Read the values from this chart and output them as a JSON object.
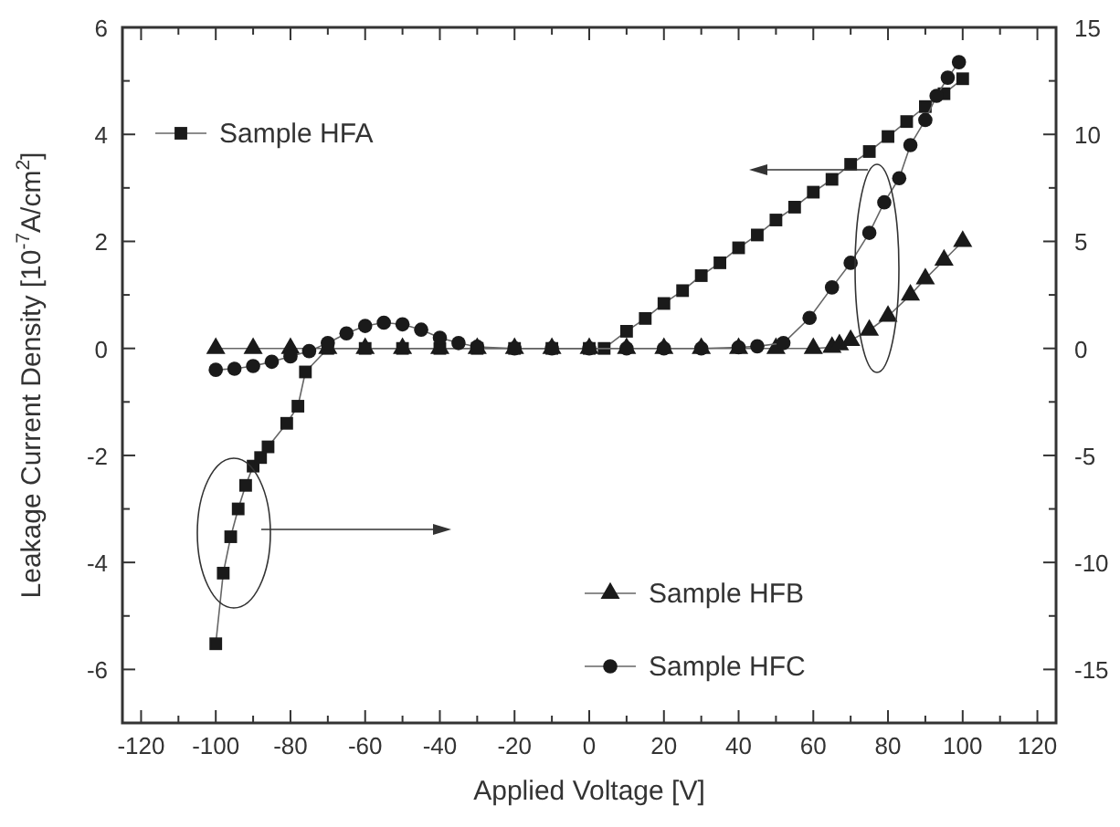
{
  "chart_data": {
    "type": "line",
    "xlabel": "Applied Voltage [V]",
    "ylabel": "Leakage Current Density [10$^{-7}$A/cm$^{2}$]",
    "xlim": [
      -125,
      125
    ],
    "xticks": [
      -120,
      {
        "value": -110,
        "label": null
      },
      -100,
      {
        "value": -90,
        "label": null
      },
      -80,
      {
        "value": -70,
        "label": null
      },
      -60,
      {
        "value": -50,
        "label": null
      },
      -40,
      {
        "value": -30,
        "label": null
      },
      -20,
      {
        "value": -10,
        "label": null
      },
      0,
      {
        "value": 10,
        "label": null
      },
      20,
      {
        "value": 30,
        "label": null
      },
      40,
      {
        "value": 50,
        "label": null
      },
      60,
      {
        "value": 70,
        "label": null
      },
      80,
      {
        "value": 90,
        "label": null
      },
      100,
      {
        "value": 110,
        "label": null
      },
      120
    ],
    "ylim": [
      -7,
      6
    ],
    "yticks": [
      -6,
      {
        "value": -5,
        "label": null
      },
      -4,
      {
        "value": -3,
        "label": null
      },
      -2,
      {
        "value": -1,
        "label": null
      },
      0,
      {
        "value": 1,
        "label": null
      },
      2,
      {
        "value": 3,
        "label": null
      },
      4,
      {
        "value": 5,
        "label": null
      },
      6
    ],
    "y2lim": [
      -17.5,
      15
    ],
    "y2ticks": [
      -15,
      {
        "value": -12.5,
        "label": null
      },
      -10,
      {
        "value": -7.5,
        "label": null
      },
      -5,
      {
        "value": -2.5,
        "label": null
      },
      0,
      {
        "value": 2.5,
        "label": null
      },
      5,
      {
        "value": 7.5,
        "label": null
      },
      10,
      {
        "value": 12.5,
        "label": null
      },
      15
    ],
    "legend": "left",
    "line_style": "solid",
    "grid": false,
    "series": [
      {
        "name": "Sample HFA",
        "color": "#1a1a1a",
        "marker": "square",
        "axis": "y2",
        "x": [
          -100,
          -98,
          -96,
          -94,
          -92,
          -90,
          -88,
          -86,
          -81,
          -78,
          -76,
          -70,
          -60,
          -50,
          -40,
          -30,
          -20,
          -10,
          0,
          4,
          10,
          15,
          20,
          25,
          30,
          35,
          40,
          45,
          50,
          55,
          60,
          65,
          70,
          75,
          80,
          85,
          90,
          95,
          100
        ],
        "values": [
          -13.8,
          -10.5,
          -8.8,
          -7.5,
          -6.4,
          -5.5,
          -5.1,
          -4.6,
          -3.5,
          -2.7,
          -1.1,
          0,
          0,
          0,
          0,
          0,
          0,
          0,
          0,
          0,
          0.8,
          1.4,
          2.1,
          2.7,
          3.4,
          4.0,
          4.7,
          5.3,
          6.0,
          6.6,
          7.3,
          7.9,
          8.6,
          9.2,
          9.9,
          10.6,
          11.3,
          11.9,
          12.6
        ]
      },
      {
        "name": "Sample HFB",
        "color": "#1a1a1a",
        "marker": "triangle",
        "axis": "y",
        "x": [
          -100,
          -90,
          -80,
          -70,
          -60,
          -50,
          -40,
          -30,
          -20,
          -10,
          0,
          10,
          20,
          30,
          40,
          50,
          60,
          65,
          67,
          70,
          75,
          80,
          86,
          90,
          95,
          100
        ],
        "values": [
          0,
          0,
          0,
          0,
          0,
          0,
          0,
          0,
          0,
          0,
          0,
          0,
          0,
          0,
          0,
          0,
          0,
          0.02,
          0.07,
          0.15,
          0.34,
          0.6,
          1.0,
          1.3,
          1.65,
          2.0
        ]
      },
      {
        "name": "Sample HFC",
        "color": "#1a1a1a",
        "marker": "circle",
        "axis": "y",
        "x": [
          -100,
          -95,
          -90,
          -85,
          -80,
          -75,
          -70,
          -65,
          -60,
          -55,
          -50,
          -45,
          -40,
          -35,
          -30,
          -20,
          -10,
          0,
          10,
          20,
          30,
          40,
          45,
          52,
          59,
          65,
          70,
          75,
          79,
          83,
          86,
          90,
          93,
          96,
          99
        ],
        "values": [
          -0.4,
          -0.38,
          -0.33,
          -0.25,
          -0.15,
          -0.05,
          0.1,
          0.28,
          0.42,
          0.48,
          0.45,
          0.35,
          0.2,
          0.1,
          0.03,
          0,
          0,
          0,
          0,
          0,
          0,
          0.02,
          0.04,
          0.1,
          0.57,
          1.14,
          1.6,
          2.16,
          2.73,
          3.18,
          3.8,
          4.27,
          4.72,
          5.06,
          5.35
        ]
      }
    ]
  }
}
